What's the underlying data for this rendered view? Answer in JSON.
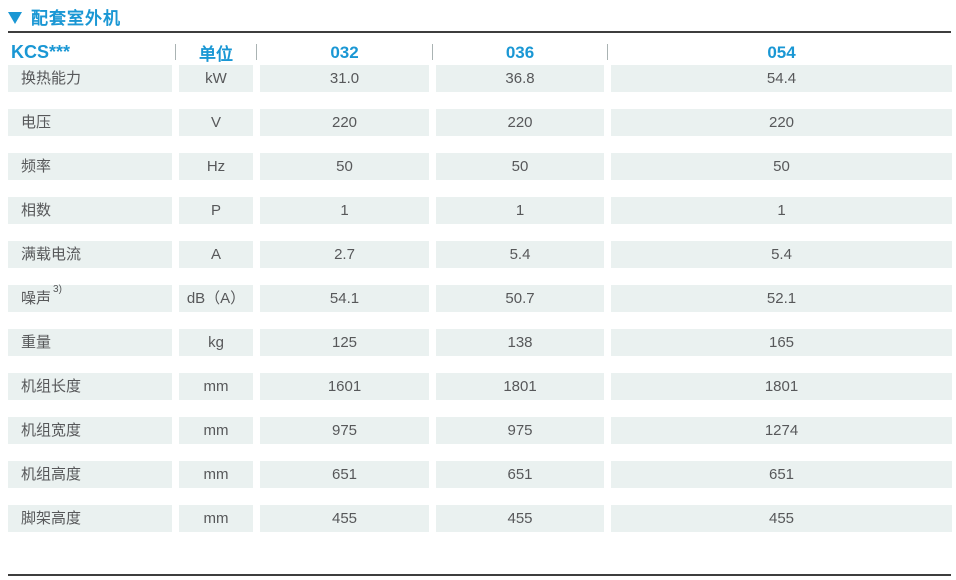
{
  "title": {
    "text": "配套室外机"
  },
  "colors": {
    "accent_blue": "#1a97d4",
    "cell_background": "#eaf1f0",
    "cell_text": "#57585a",
    "rule_dark": "#3d3d3d"
  },
  "table": {
    "model_header": "KCS***",
    "unit_header": "单位",
    "model_columns": [
      "032",
      "036",
      "054"
    ],
    "rows": [
      {
        "label": "换热能力",
        "label_sup": "",
        "unit": "kW",
        "values": [
          "31.0",
          "36.8",
          "54.4"
        ]
      },
      {
        "label": "电压",
        "label_sup": "",
        "unit": "V",
        "values": [
          "220",
          "220",
          "220"
        ]
      },
      {
        "label": "频率",
        "label_sup": "",
        "unit": "Hz",
        "values": [
          "50",
          "50",
          "50"
        ]
      },
      {
        "label": "相数",
        "label_sup": "",
        "unit": "P",
        "values": [
          "1",
          "1",
          "1"
        ]
      },
      {
        "label": "满载电流",
        "label_sup": "",
        "unit": "A",
        "values": [
          "2.7",
          "5.4",
          "5.4"
        ]
      },
      {
        "label": "噪声",
        "label_sup": "3)",
        "unit": "dB（A）",
        "values": [
          "54.1",
          "50.7",
          "52.1"
        ]
      },
      {
        "label": "重量",
        "label_sup": "",
        "unit": "kg",
        "values": [
          "125",
          "138",
          "165"
        ]
      },
      {
        "label": "机组长度",
        "label_sup": "",
        "unit": "mm",
        "values": [
          "1601",
          "1801",
          "1801"
        ]
      },
      {
        "label": "机组宽度",
        "label_sup": "",
        "unit": "mm",
        "values": [
          "975",
          "975",
          "1274"
        ]
      },
      {
        "label": "机组高度",
        "label_sup": "",
        "unit": "mm",
        "values": [
          "651",
          "651",
          "651"
        ]
      },
      {
        "label": "脚架高度",
        "label_sup": "",
        "unit": "mm",
        "values": [
          "455",
          "455",
          "455"
        ]
      }
    ]
  }
}
